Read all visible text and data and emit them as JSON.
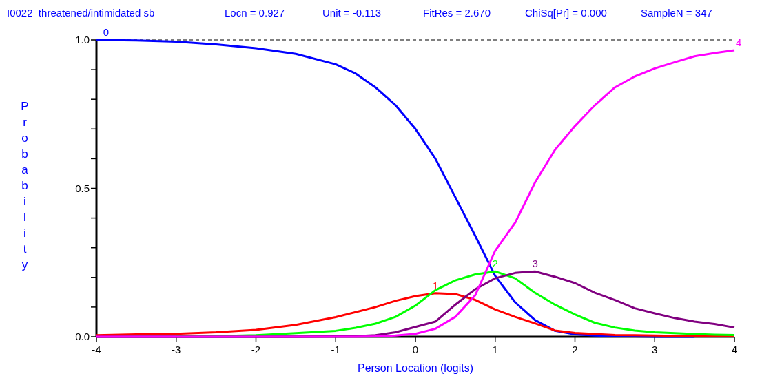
{
  "chart_data": {
    "type": "line",
    "title": "I0022  threatened/intimidated sb",
    "annotations": [
      "Locn = 0.927",
      "Unit = -0.113",
      "FitRes = 2.670",
      "ChiSq[Pr] = 0.000",
      "SampleN = 347"
    ],
    "xlabel": "Person Location (logits)",
    "ylabel": "Probability",
    "x": [
      -4,
      -3.5,
      -3,
      -2.5,
      -2,
      -1.5,
      -1,
      -0.75,
      -0.5,
      -0.25,
      0,
      0.25,
      0.5,
      0.75,
      1,
      1.25,
      1.5,
      1.75,
      2,
      2.25,
      2.5,
      2.75,
      3,
      3.25,
      3.5,
      3.75,
      4
    ],
    "series": [
      {
        "name": "0",
        "color": "#0000ff",
        "values": [
          1.0,
          0.998,
          0.994,
          0.985,
          0.972,
          0.953,
          0.918,
          0.887,
          0.84,
          0.78,
          0.7,
          0.6,
          0.47,
          0.34,
          0.205,
          0.116,
          0.056,
          0.02,
          0.008,
          0.004,
          0.002,
          0.001,
          0,
          0,
          0,
          null,
          null
        ]
      },
      {
        "name": "1",
        "color": "#ff0000",
        "values": [
          0.005,
          0.008,
          0.01,
          0.015,
          0.023,
          0.04,
          0.066,
          0.083,
          0.1,
          0.121,
          0.137,
          0.147,
          0.144,
          0.124,
          0.092,
          0.067,
          0.045,
          0.021,
          0.013,
          0.009,
          0.006,
          0.005,
          0.004,
          0.003,
          0.002,
          0.001,
          0.001
        ]
      },
      {
        "name": "2",
        "color": "#00ff00",
        "values": [
          null,
          null,
          0.001,
          0.002,
          0.005,
          0.012,
          0.02,
          0.03,
          0.044,
          0.067,
          0.105,
          0.157,
          0.19,
          0.21,
          0.22,
          0.197,
          0.148,
          0.108,
          0.075,
          0.047,
          0.031,
          0.021,
          0.015,
          0.012,
          0.009,
          0.007,
          0.006
        ]
      },
      {
        "name": "3",
        "color": "#800080",
        "values": [
          0,
          0,
          0,
          0,
          0,
          0,
          0.001,
          0.002,
          0.005,
          0.015,
          0.033,
          0.051,
          0.108,
          0.16,
          0.197,
          0.215,
          0.22,
          0.202,
          0.181,
          0.148,
          0.124,
          0.096,
          0.079,
          0.063,
          0.051,
          0.043,
          0.031
        ]
      },
      {
        "name": "4",
        "color": "#ff00ff",
        "values": [
          0,
          0,
          0,
          0,
          0,
          0,
          0,
          0,
          0.001,
          0.004,
          0.01,
          0.027,
          0.067,
          0.14,
          0.29,
          0.384,
          0.52,
          0.63,
          0.71,
          0.78,
          0.84,
          0.877,
          0.904,
          0.925,
          0.945,
          0.956,
          0.965
        ]
      }
    ],
    "xlim": [
      -4,
      4
    ],
    "xticks": [
      -4,
      -3,
      -2,
      -1,
      0,
      1,
      2,
      3,
      4
    ],
    "ylim": [
      0,
      1
    ],
    "yticks": [
      {
        "value": 0,
        "label": "0.0"
      },
      {
        "value": 0.1,
        "label": null
      },
      {
        "value": 0.2,
        "label": null
      },
      {
        "value": 0.3,
        "label": null
      },
      {
        "value": 0.4,
        "label": null
      },
      {
        "value": 0.5,
        "label": "0.5"
      },
      {
        "value": 0.6,
        "label": null
      },
      {
        "value": 0.7,
        "label": null
      },
      {
        "value": 0.8,
        "label": null
      },
      {
        "value": 0.9,
        "label": null
      },
      {
        "value": 1,
        "label": "1.0"
      }
    ],
    "ref_lines": [
      {
        "axis": "y",
        "value": 1,
        "color": "#000000",
        "line_style": "dashed"
      }
    ],
    "grid": false,
    "marker": "none",
    "line_style": "solid"
  }
}
